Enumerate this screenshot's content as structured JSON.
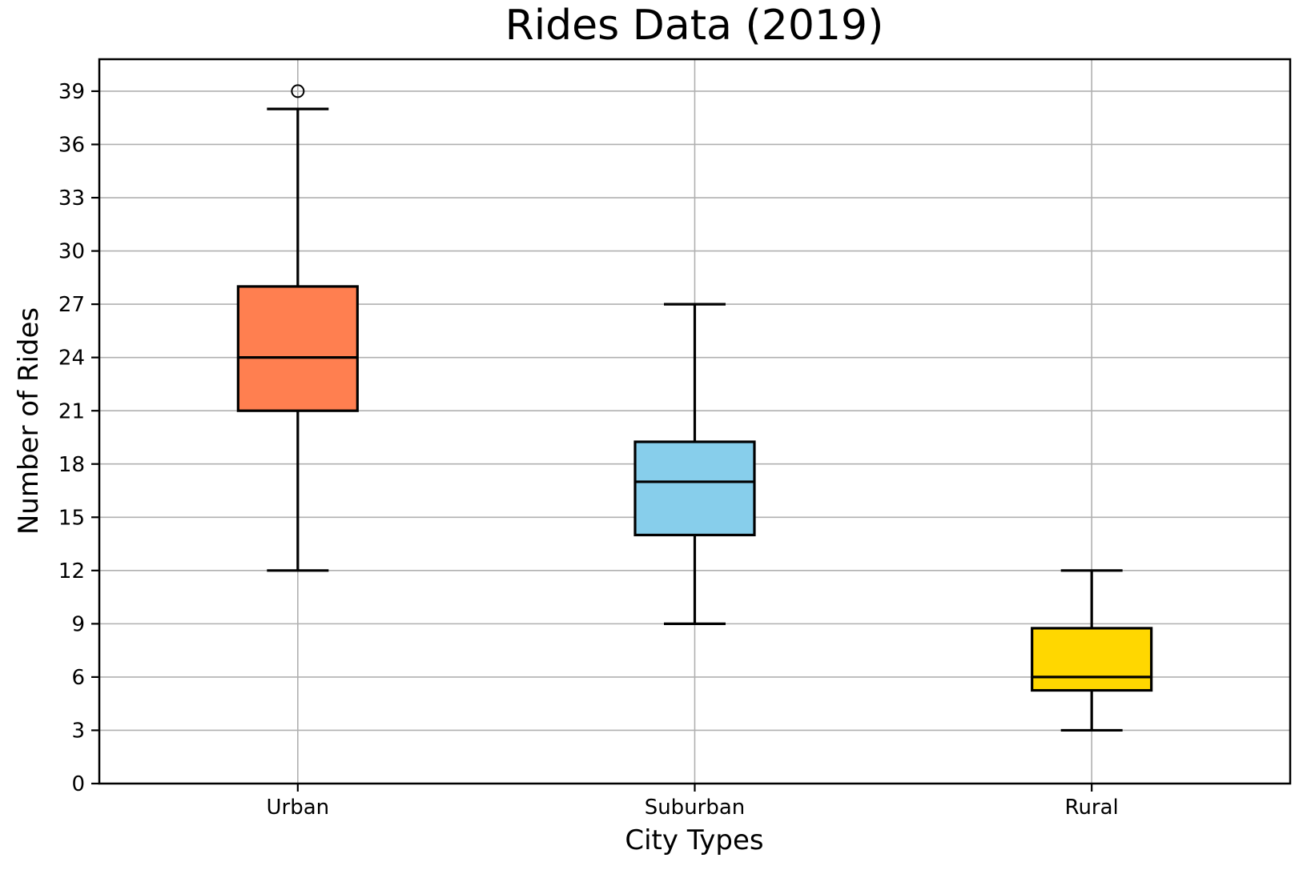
{
  "chart_data": {
    "type": "boxplot",
    "title": "Rides Data (2019)",
    "xlabel": "City Types",
    "ylabel": "Number of Rides",
    "categories": [
      "Urban",
      "Suburban",
      "Rural"
    ],
    "series": [
      {
        "name": "Urban",
        "whisker_low": 12,
        "q1": 21,
        "median": 24,
        "q3": 28,
        "whisker_high": 38,
        "outliers": [
          39
        ],
        "fill_color": "#FF7F50"
      },
      {
        "name": "Suburban",
        "whisker_low": 9,
        "q1": 14,
        "median": 17,
        "q3": 19.25,
        "whisker_high": 27,
        "outliers": [],
        "fill_color": "#87CEEB"
      },
      {
        "name": "Rural",
        "whisker_low": 3,
        "q1": 5.25,
        "median": 6,
        "q3": 8.75,
        "whisker_high": 12,
        "outliers": [],
        "fill_color": "#FFD700"
      }
    ],
    "yticks": [
      0,
      3,
      6,
      9,
      12,
      15,
      18,
      21,
      24,
      27,
      30,
      33,
      36,
      39
    ],
    "ylim": [
      0,
      40.8
    ],
    "xlim_categories": [
      0.5,
      3.5
    ],
    "grid": true,
    "legend_position": "none",
    "colors": {
      "grid": "#b0b0b0",
      "axis": "#000000",
      "median": "#000000",
      "background": "#ffffff"
    }
  }
}
